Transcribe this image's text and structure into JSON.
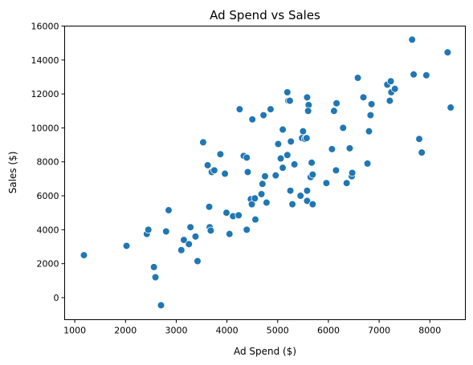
{
  "chart_data": {
    "type": "scatter",
    "title": "Ad Spend vs Sales",
    "xlabel": "Ad Spend ($)",
    "ylabel": "Sales ($)",
    "xlim": [
      800,
      8700
    ],
    "ylim": [
      -1300,
      16000
    ],
    "xticks": [
      1000,
      2000,
      3000,
      4000,
      5000,
      6000,
      7000,
      8000
    ],
    "yticks": [
      0,
      2000,
      4000,
      6000,
      8000,
      10000,
      12000,
      14000,
      16000
    ],
    "grid": false,
    "marker_color": "#1f77b4",
    "marker_edge": "#ffffff",
    "points": [
      [
        1180,
        2500
      ],
      [
        2020,
        3050
      ],
      [
        2420,
        3750
      ],
      [
        2450,
        4000
      ],
      [
        2560,
        1800
      ],
      [
        2590,
        1200
      ],
      [
        2700,
        -450
      ],
      [
        2800,
        3900
      ],
      [
        2850,
        5150
      ],
      [
        3100,
        2800
      ],
      [
        3150,
        3400
      ],
      [
        3250,
        3150
      ],
      [
        3280,
        4150
      ],
      [
        3380,
        3600
      ],
      [
        3420,
        2150
      ],
      [
        3530,
        9150
      ],
      [
        3620,
        7800
      ],
      [
        3650,
        5350
      ],
      [
        3660,
        4150
      ],
      [
        3680,
        3950
      ],
      [
        3700,
        7400
      ],
      [
        3750,
        7500
      ],
      [
        3870,
        8450
      ],
      [
        3960,
        7300
      ],
      [
        3990,
        5000
      ],
      [
        4050,
        3750
      ],
      [
        4120,
        4800
      ],
      [
        4230,
        4850
      ],
      [
        4250,
        11100
      ],
      [
        4330,
        8350
      ],
      [
        4390,
        8250
      ],
      [
        4390,
        4000
      ],
      [
        4410,
        7400
      ],
      [
        4470,
        5800
      ],
      [
        4490,
        5500
      ],
      [
        4500,
        10500
      ],
      [
        4550,
        5850
      ],
      [
        4560,
        4600
      ],
      [
        4680,
        6100
      ],
      [
        4700,
        6700
      ],
      [
        4720,
        10750
      ],
      [
        4750,
        7150
      ],
      [
        4780,
        5600
      ],
      [
        4860,
        11100
      ],
      [
        4960,
        7200
      ],
      [
        5010,
        9050
      ],
      [
        5060,
        8200
      ],
      [
        5100,
        9900
      ],
      [
        5100,
        7650
      ],
      [
        5190,
        12100
      ],
      [
        5190,
        8400
      ],
      [
        5210,
        11600
      ],
      [
        5240,
        11600
      ],
      [
        5250,
        6300
      ],
      [
        5260,
        9200
      ],
      [
        5290,
        5500
      ],
      [
        5330,
        7850
      ],
      [
        5450,
        6000
      ],
      [
        5480,
        9400
      ],
      [
        5500,
        9800
      ],
      [
        5540,
        9350
      ],
      [
        5570,
        9400
      ],
      [
        5580,
        6300
      ],
      [
        5580,
        5700
      ],
      [
        5580,
        11800
      ],
      [
        5610,
        11350
      ],
      [
        5600,
        11000
      ],
      [
        5650,
        7100
      ],
      [
        5670,
        7950
      ],
      [
        5690,
        5500
      ],
      [
        5690,
        7250
      ],
      [
        5960,
        6750
      ],
      [
        6070,
        8750
      ],
      [
        6110,
        11000
      ],
      [
        6150,
        7500
      ],
      [
        6160,
        11450
      ],
      [
        6290,
        10000
      ],
      [
        6360,
        6750
      ],
      [
        6420,
        8800
      ],
      [
        6460,
        7150
      ],
      [
        6470,
        7350
      ],
      [
        6580,
        12950
      ],
      [
        6690,
        11800
      ],
      [
        6770,
        7900
      ],
      [
        6800,
        9800
      ],
      [
        6830,
        10750
      ],
      [
        6850,
        11400
      ],
      [
        7160,
        12550
      ],
      [
        7210,
        11600
      ],
      [
        7230,
        12750
      ],
      [
        7240,
        12100
      ],
      [
        7310,
        12300
      ],
      [
        7650,
        15200
      ],
      [
        7680,
        13150
      ],
      [
        7790,
        9350
      ],
      [
        7840,
        8550
      ],
      [
        7930,
        13100
      ],
      [
        8350,
        14450
      ],
      [
        8410,
        11200
      ]
    ]
  }
}
